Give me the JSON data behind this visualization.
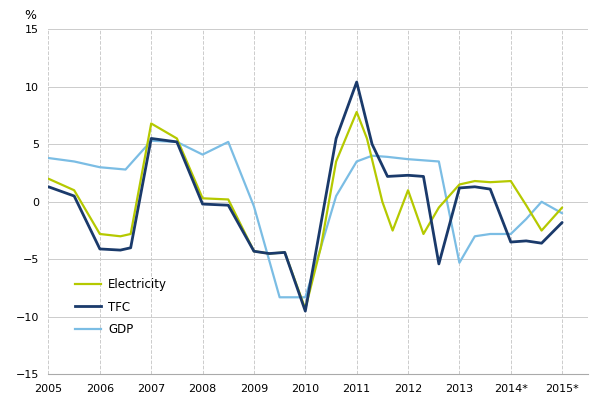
{
  "xtick_labels": [
    "2005",
    "2006",
    "2007",
    "2008",
    "2009",
    "2010",
    "2011",
    "2012",
    "2013",
    "2014*",
    "2015*"
  ],
  "xtick_positions": [
    2005,
    2006,
    2007,
    2008,
    2009,
    2010,
    2011,
    2012,
    2013,
    2014,
    2015
  ],
  "electricity_color": "#b5c900",
  "tfc_color": "#1a3a6b",
  "gdp_color": "#7bbde4",
  "ylim": [
    -15,
    15
  ],
  "yticks": [
    -15,
    -10,
    -5,
    0,
    5,
    10,
    15
  ],
  "ylabel": "%",
  "grid_color": "#cccccc",
  "bg_color": "#ffffff",
  "lw_elec": 1.6,
  "lw_tfc": 2.0,
  "lw_gdp": 1.6,
  "legend_labels": [
    "Electricity",
    "TFC",
    "GDP"
  ],
  "elec_x": [
    2005,
    2005.5,
    2006,
    2006.4,
    2006.6,
    2007,
    2007.5,
    2008,
    2008.5,
    2009,
    2009.3,
    2009.6,
    2010,
    2010.3,
    2010.6,
    2011,
    2011.2,
    2011.5,
    2011.7,
    2012,
    2012.3,
    2012.6,
    2013,
    2013.3,
    2013.6,
    2014,
    2014.3,
    2014.6,
    2015
  ],
  "elec_y": [
    2.0,
    1.0,
    -2.8,
    -3.0,
    -2.8,
    6.8,
    5.5,
    0.3,
    0.2,
    -4.3,
    -4.5,
    -4.4,
    -9.3,
    -4.0,
    3.5,
    7.8,
    5.5,
    0.0,
    -2.5,
    1.0,
    -2.8,
    -0.5,
    1.5,
    1.8,
    1.7,
    1.8,
    -0.3,
    -2.5,
    -0.5
  ],
  "tfc_x": [
    2005,
    2005.5,
    2006,
    2006.4,
    2006.6,
    2007,
    2007.5,
    2008,
    2008.5,
    2009,
    2009.3,
    2009.6,
    2010,
    2010.3,
    2010.6,
    2011,
    2011.3,
    2011.6,
    2012,
    2012.3,
    2012.6,
    2013,
    2013.3,
    2013.6,
    2014,
    2014.3,
    2014.6,
    2015
  ],
  "tfc_y": [
    1.3,
    0.5,
    -4.1,
    -4.2,
    -4.0,
    5.5,
    5.2,
    -0.2,
    -0.3,
    -4.3,
    -4.5,
    -4.4,
    -9.5,
    -2.0,
    5.5,
    10.4,
    5.0,
    2.2,
    2.3,
    2.2,
    -5.4,
    1.2,
    1.3,
    1.1,
    -3.5,
    -3.4,
    -3.6,
    -1.8
  ],
  "gdp_x": [
    2005,
    2005.5,
    2006,
    2006.5,
    2007,
    2007.5,
    2008,
    2008.5,
    2009,
    2009.5,
    2010,
    2010.3,
    2010.6,
    2011,
    2011.3,
    2011.6,
    2012,
    2012.3,
    2012.6,
    2013,
    2013.3,
    2013.6,
    2014,
    2014.3,
    2014.6,
    2015
  ],
  "gdp_y": [
    3.8,
    3.5,
    3.0,
    2.8,
    5.3,
    5.2,
    4.1,
    5.2,
    -0.4,
    -8.3,
    -8.3,
    -4.0,
    0.5,
    3.5,
    4.0,
    3.9,
    3.7,
    3.6,
    3.5,
    -5.3,
    -3.0,
    -2.8,
    -2.8,
    -1.5,
    0.0,
    -1.0
  ]
}
